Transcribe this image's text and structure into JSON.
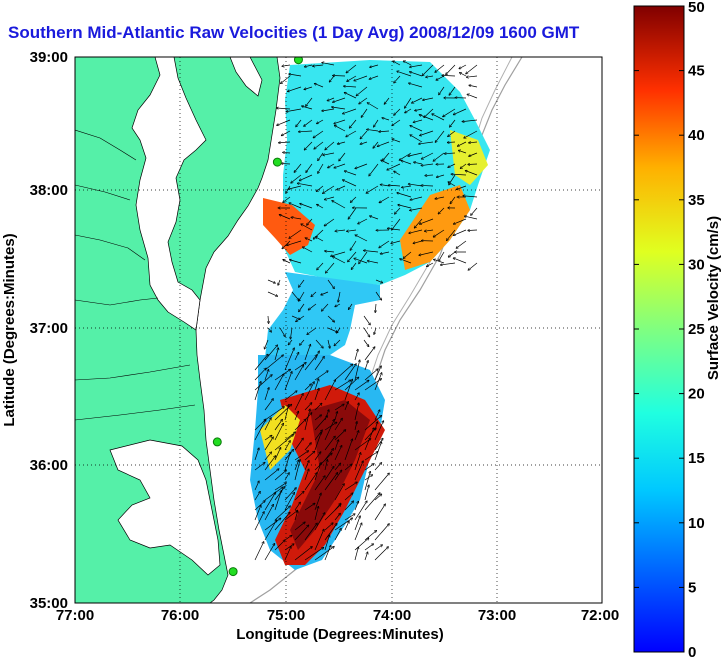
{
  "title": "Southern Mid-Atlantic Raw Velocities (1 Day Avg) 2008/12/09 1600 GMT",
  "map": {
    "xlabel": "Longitude (Degrees:Minutes)",
    "ylabel": "Latitude (Degrees:Minutes)",
    "lon_ticks": [
      "77:00",
      "76:00",
      "75:00",
      "74:00",
      "73:00",
      "72:00"
    ],
    "lat_ticks": [
      "39:00",
      "38:00",
      "37:00",
      "36:00",
      "35:00"
    ],
    "lon_range": [
      -77,
      -72
    ],
    "lat_range": [
      35,
      39
    ],
    "land_color": "#55f0a8",
    "grid": "dotted",
    "station_color": "#22dd22"
  },
  "colorbar": {
    "label": "Surface Velocity (cm/s)",
    "ticks": [
      "0",
      "5",
      "10",
      "15",
      "20",
      "25",
      "30",
      "35",
      "40",
      "45",
      "50"
    ],
    "range": [
      0,
      50
    ],
    "colormap": "jet"
  },
  "stations": [
    {
      "lon": -74.88,
      "lat": 38.98
    },
    {
      "lon": -75.08,
      "lat": 38.23
    },
    {
      "lon": -75.65,
      "lat": 36.18
    },
    {
      "lon": -75.5,
      "lat": 35.23
    }
  ]
}
